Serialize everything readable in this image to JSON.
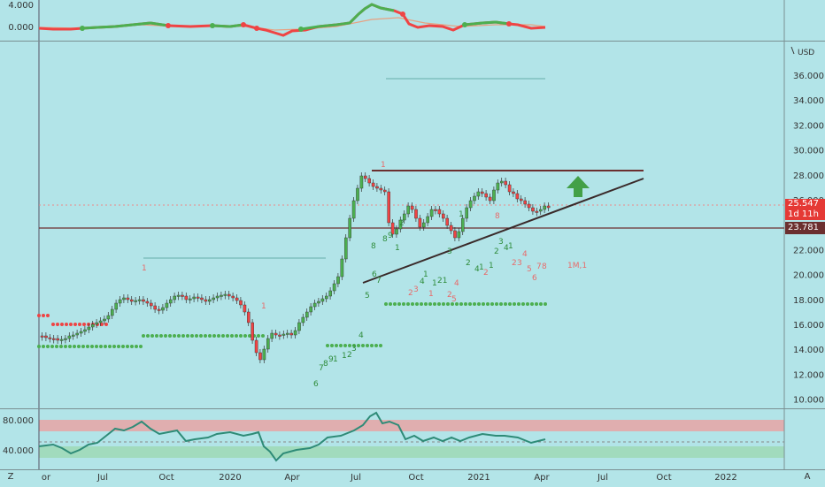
{
  "top_indicator": {
    "ticks": [
      "4.000",
      "0.000"
    ]
  },
  "main": {
    "currency": "USD",
    "price_ticks": [
      "36.000",
      "34.000",
      "32.000",
      "30.000",
      "28.000",
      "26.000",
      "24.000",
      "22.000",
      "20.000",
      "18.000",
      "16.000",
      "14.000",
      "12.000",
      "10.000"
    ],
    "last_price": "25.547",
    "countdown": "1d 11h",
    "level_price": "23.781",
    "annotation": "1M,1",
    "colors": {
      "up": "#4caf50",
      "down": "#ef4444",
      "trend_line": "#6b2f2f",
      "last_price_tag": "#e53935",
      "level_tag": "#6b2f2f",
      "arrow": "#43a047"
    }
  },
  "rsi": {
    "ticks": [
      "80.000",
      "40.000"
    ]
  },
  "time_axis": {
    "labels": [
      "or",
      "Jul",
      "Oct",
      "2020",
      "Apr",
      "Jul",
      "Oct",
      "2021",
      "Apr",
      "Jul",
      "Oct",
      "2022"
    ],
    "left_corner": "Z",
    "right_corner": "A"
  }
}
